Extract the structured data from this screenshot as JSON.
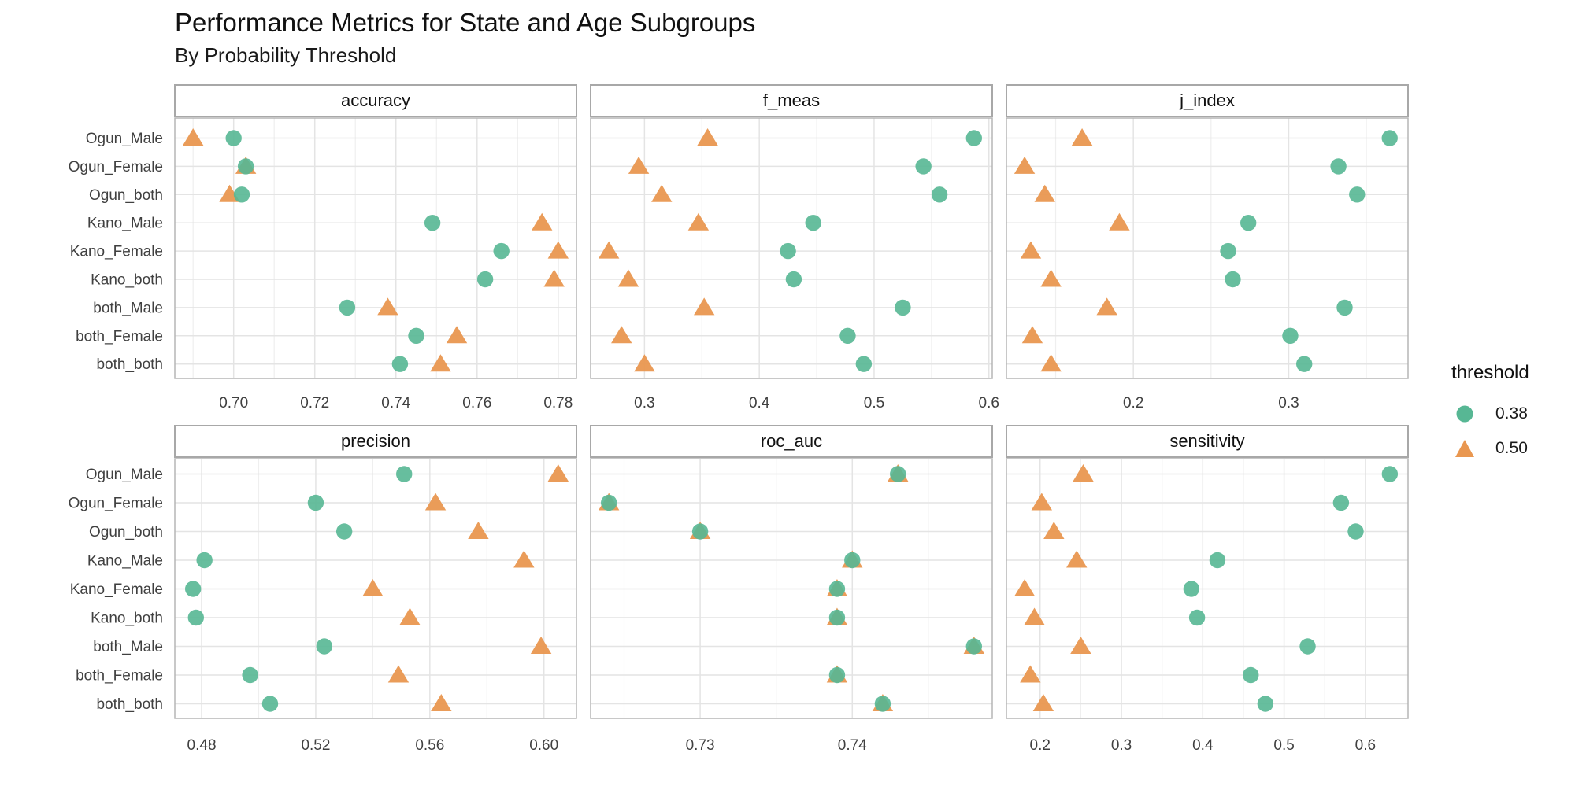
{
  "chart_data": {
    "type": "scatter",
    "title": "Performance Metrics for State and Age Subgroups",
    "subtitle": "By Probability Threshold",
    "grid": true,
    "legend": {
      "title": "threshold",
      "position": "right",
      "items": [
        {
          "label": "0.38",
          "shape": "circle",
          "color": "#57B794"
        },
        {
          "label": "0.50",
          "shape": "triangle",
          "color": "#E99750"
        }
      ]
    },
    "categories": [
      "Ogun_Male",
      "Ogun_Female",
      "Ogun_both",
      "Kano_Male",
      "Kano_Female",
      "Kano_both",
      "both_Male",
      "both_Female",
      "both_both"
    ],
    "facets": [
      {
        "metric": "accuracy",
        "xlim": [
          0.6855,
          0.7845
        ],
        "ticks": {
          "values": [
            0.7,
            0.72,
            0.74,
            0.76,
            0.78
          ],
          "labels": [
            "0.70",
            "0.72",
            "0.74",
            "0.76",
            "0.78"
          ],
          "minor": [
            0.69,
            0.71,
            0.73,
            0.75,
            0.77
          ]
        },
        "series": [
          {
            "name": "0.38",
            "shape": "circle",
            "values": [
              0.7,
              0.703,
              0.702,
              0.749,
              0.766,
              0.762,
              0.728,
              0.745,
              0.741
            ]
          },
          {
            "name": "0.50",
            "shape": "triangle",
            "values": [
              0.69,
              0.703,
              0.699,
              0.776,
              0.78,
              0.779,
              0.738,
              0.755,
              0.751
            ]
          }
        ]
      },
      {
        "metric": "f_meas",
        "xlim": [
          0.2531,
          0.6029
        ],
        "ticks": {
          "values": [
            0.3,
            0.4,
            0.5,
            0.6
          ],
          "labels": [
            "0.3",
            "0.4",
            "0.5",
            "0.6"
          ],
          "minor": [
            0.35,
            0.45,
            0.55
          ]
        },
        "series": [
          {
            "name": "0.38",
            "shape": "circle",
            "values": [
              0.587,
              0.543,
              0.557,
              0.447,
              0.425,
              0.43,
              0.525,
              0.477,
              0.491
            ]
          },
          {
            "name": "0.50",
            "shape": "triangle",
            "values": [
              0.355,
              0.295,
              0.315,
              0.347,
              0.269,
              0.286,
              0.352,
              0.28,
              0.3
            ]
          }
        ]
      },
      {
        "metric": "j_index",
        "xlim": [
          0.1183,
          0.3768
        ],
        "ticks": {
          "values": [
            0.2,
            0.3
          ],
          "labels": [
            "0.2",
            "0.3"
          ],
          "minor": [
            0.15,
            0.25,
            0.35
          ]
        },
        "series": [
          {
            "name": "0.38",
            "shape": "circle",
            "values": [
              0.365,
              0.332,
              0.344,
              0.274,
              0.261,
              0.264,
              0.336,
              0.301,
              0.31
            ]
          },
          {
            "name": "0.50",
            "shape": "triangle",
            "values": [
              0.167,
              0.13,
              0.143,
              0.191,
              0.134,
              0.147,
              0.183,
              0.135,
              0.147
            ]
          }
        ]
      },
      {
        "metric": "precision",
        "xlim": [
          0.4706,
          0.6114
        ],
        "ticks": {
          "values": [
            0.48,
            0.52,
            0.56,
            0.6
          ],
          "labels": [
            "0.48",
            "0.52",
            "0.56",
            "0.60"
          ],
          "minor": [
            0.5,
            0.54,
            0.58
          ]
        },
        "series": [
          {
            "name": "0.38",
            "shape": "circle",
            "values": [
              0.551,
              0.52,
              0.53,
              0.481,
              0.477,
              0.478,
              0.523,
              0.497,
              0.504
            ]
          },
          {
            "name": "0.50",
            "shape": "triangle",
            "values": [
              0.605,
              0.562,
              0.577,
              0.593,
              0.54,
              0.553,
              0.599,
              0.549,
              0.564
            ]
          }
        ]
      },
      {
        "metric": "roc_auc",
        "xlim": [
          0.7228,
          0.7492
        ],
        "ticks": {
          "values": [
            0.73,
            0.74
          ],
          "labels": [
            "0.73",
            "0.74"
          ],
          "minor": [
            0.725,
            0.735,
            0.745
          ]
        },
        "series": [
          {
            "name": "0.38",
            "shape": "circle",
            "values": [
              0.743,
              0.724,
              0.73,
              0.74,
              0.739,
              0.739,
              0.748,
              0.739,
              0.742
            ]
          },
          {
            "name": "0.50",
            "shape": "triangle",
            "values": [
              0.743,
              0.724,
              0.73,
              0.74,
              0.739,
              0.739,
              0.748,
              0.739,
              0.742
            ]
          }
        ]
      },
      {
        "metric": "sensitivity",
        "xlim": [
          0.1586,
          0.6524
        ],
        "ticks": {
          "values": [
            0.2,
            0.3,
            0.4,
            0.5,
            0.6
          ],
          "labels": [
            "0.2",
            "0.3",
            "0.4",
            "0.5",
            "0.6"
          ],
          "minor": [
            0.25,
            0.35,
            0.45,
            0.55,
            0.65
          ]
        },
        "series": [
          {
            "name": "0.38",
            "shape": "circle",
            "values": [
              0.63,
              0.57,
              0.588,
              0.418,
              0.386,
              0.393,
              0.529,
              0.459,
              0.477
            ]
          },
          {
            "name": "0.50",
            "shape": "triangle",
            "values": [
              0.253,
              0.202,
              0.217,
              0.245,
              0.181,
              0.193,
              0.25,
              0.188,
              0.204
            ]
          }
        ]
      }
    ],
    "style": {
      "background": "#ffffff",
      "panel_border": "#b5b5b5",
      "strip_border": "#a8a8a8",
      "strip_fill": "#ffffff",
      "strip_text": "#111111",
      "grid_major": "#e4e4e4",
      "grid_minor": "#efefef",
      "axis_text": "#404040",
      "point_green": "#57B794",
      "point_orange": "#E99750"
    }
  }
}
